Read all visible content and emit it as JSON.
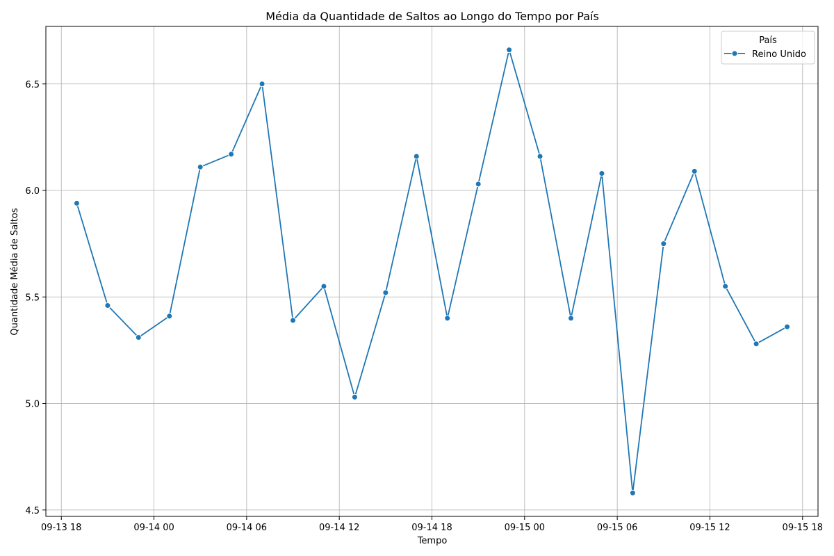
{
  "chart_data": {
    "type": "line",
    "title": "Média da Quantidade de Saltos ao Longo do Tempo por País",
    "xlabel": "Tempo",
    "ylabel": "Quantidade Média de Saltos",
    "x_axis_type": "datetime",
    "xlim": [
      "2024-09-13T17:00",
      "2024-09-15T19:00"
    ],
    "ylim": [
      4.47,
      6.77
    ],
    "x_ticks": [
      {
        "value": "2024-09-13T18:00",
        "label": "09-13 18"
      },
      {
        "value": "2024-09-14T00:00",
        "label": "09-14 00"
      },
      {
        "value": "2024-09-14T06:00",
        "label": "09-14 06"
      },
      {
        "value": "2024-09-14T12:00",
        "label": "09-14 12"
      },
      {
        "value": "2024-09-14T18:00",
        "label": "09-14 18"
      },
      {
        "value": "2024-09-15T00:00",
        "label": "09-15 00"
      },
      {
        "value": "2024-09-15T06:00",
        "label": "09-15 06"
      },
      {
        "value": "2024-09-15T12:00",
        "label": "09-15 12"
      },
      {
        "value": "2024-09-15T18:00",
        "label": "09-15 18"
      }
    ],
    "y_ticks": [
      {
        "value": 4.5,
        "label": "4.5"
      },
      {
        "value": 5.0,
        "label": "5.0"
      },
      {
        "value": 5.5,
        "label": "5.5"
      },
      {
        "value": 6.0,
        "label": "6.0"
      },
      {
        "value": 6.5,
        "label": "6.5"
      }
    ],
    "grid": true,
    "legend": {
      "title": "País",
      "position": "top-right"
    },
    "series": [
      {
        "name": "Reino Unido",
        "color": "#1f77b4",
        "marker": "circle",
        "x": [
          "2024-09-13T19:00",
          "2024-09-13T21:00",
          "2024-09-13T23:00",
          "2024-09-14T01:00",
          "2024-09-14T03:00",
          "2024-09-14T05:00",
          "2024-09-14T07:00",
          "2024-09-14T09:00",
          "2024-09-14T11:00",
          "2024-09-14T13:00",
          "2024-09-14T15:00",
          "2024-09-14T17:00",
          "2024-09-14T19:00",
          "2024-09-14T21:00",
          "2024-09-14T23:00",
          "2024-09-15T01:00",
          "2024-09-15T03:00",
          "2024-09-15T05:00",
          "2024-09-15T07:00",
          "2024-09-15T09:00",
          "2024-09-15T11:00",
          "2024-09-15T13:00",
          "2024-09-15T15:00",
          "2024-09-15T17:00"
        ],
        "y": [
          5.94,
          5.46,
          5.31,
          5.41,
          6.11,
          6.17,
          6.5,
          5.39,
          5.55,
          5.03,
          5.52,
          6.16,
          5.4,
          6.03,
          6.66,
          6.16,
          5.4,
          6.08,
          4.58,
          5.75,
          6.09,
          5.55,
          5.28,
          5.36
        ]
      }
    ]
  }
}
